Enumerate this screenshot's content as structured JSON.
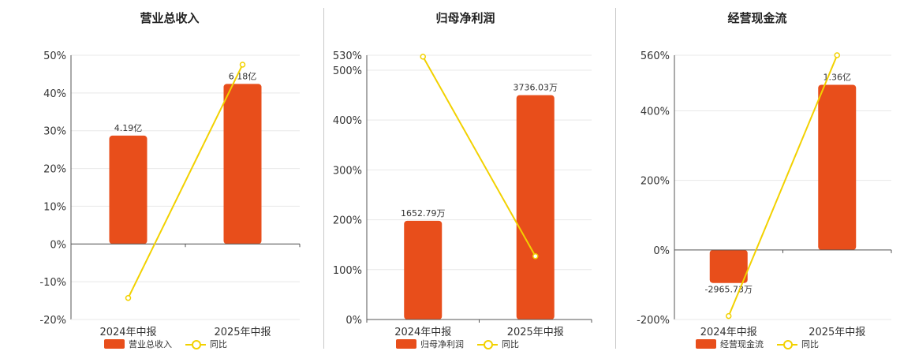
{
  "colors": {
    "bar": "#e84e1b",
    "line": "#f2d100",
    "grid": "#e8e8e8",
    "axis": "#555555"
  },
  "chart_data": [
    {
      "type": "bar",
      "title": "营业总收入",
      "categories": [
        "2024年中报",
        "2025年中报"
      ],
      "series": [
        {
          "name": "营业总收入",
          "kind": "bar",
          "values": [
            28.7,
            42.4
          ],
          "labels": [
            "4.19亿",
            "6.18亿"
          ]
        },
        {
          "name": "同比",
          "kind": "line",
          "values": [
            -14.3,
            47.5
          ]
        }
      ],
      "ylim": [
        -20,
        50
      ],
      "yticks": [
        "50%",
        "40%",
        "30%",
        "20%",
        "10%",
        "0%",
        "-10%",
        "-20%"
      ],
      "ytick_values": [
        50,
        40,
        30,
        20,
        10,
        0,
        -10,
        -20
      ],
      "grid": true,
      "legend": "bottom"
    },
    {
      "type": "bar",
      "title": "归母净利润",
      "categories": [
        "2024年中报",
        "2025年中报"
      ],
      "series": [
        {
          "name": "归母净利润",
          "kind": "bar",
          "values": [
            198,
            450
          ],
          "labels": [
            "1652.79万",
            "3736.03万"
          ]
        },
        {
          "name": "同比",
          "kind": "line",
          "values": [
            527,
            127
          ]
        }
      ],
      "ylim": [
        0,
        530
      ],
      "yticks": [
        "530%",
        "500%",
        "400%",
        "300%",
        "200%",
        "100%",
        "0%"
      ],
      "ytick_values": [
        530,
        500,
        400,
        300,
        200,
        100,
        0
      ],
      "grid": true,
      "legend": "bottom"
    },
    {
      "type": "bar",
      "title": "经营现金流",
      "categories": [
        "2024年中报",
        "2025年中报"
      ],
      "series": [
        {
          "name": "经营现金流",
          "kind": "bar",
          "values": [
            -95,
            475
          ],
          "labels": [
            "-2965.73万",
            "1.36亿"
          ]
        },
        {
          "name": "同比",
          "kind": "line",
          "values": [
            -190,
            560
          ]
        }
      ],
      "ylim": [
        -200,
        560
      ],
      "yticks": [
        "560%",
        "400%",
        "200%",
        "0%",
        "-200%"
      ],
      "ytick_values": [
        560,
        400,
        200,
        0,
        -200
      ],
      "grid": true,
      "legend": "bottom"
    }
  ]
}
